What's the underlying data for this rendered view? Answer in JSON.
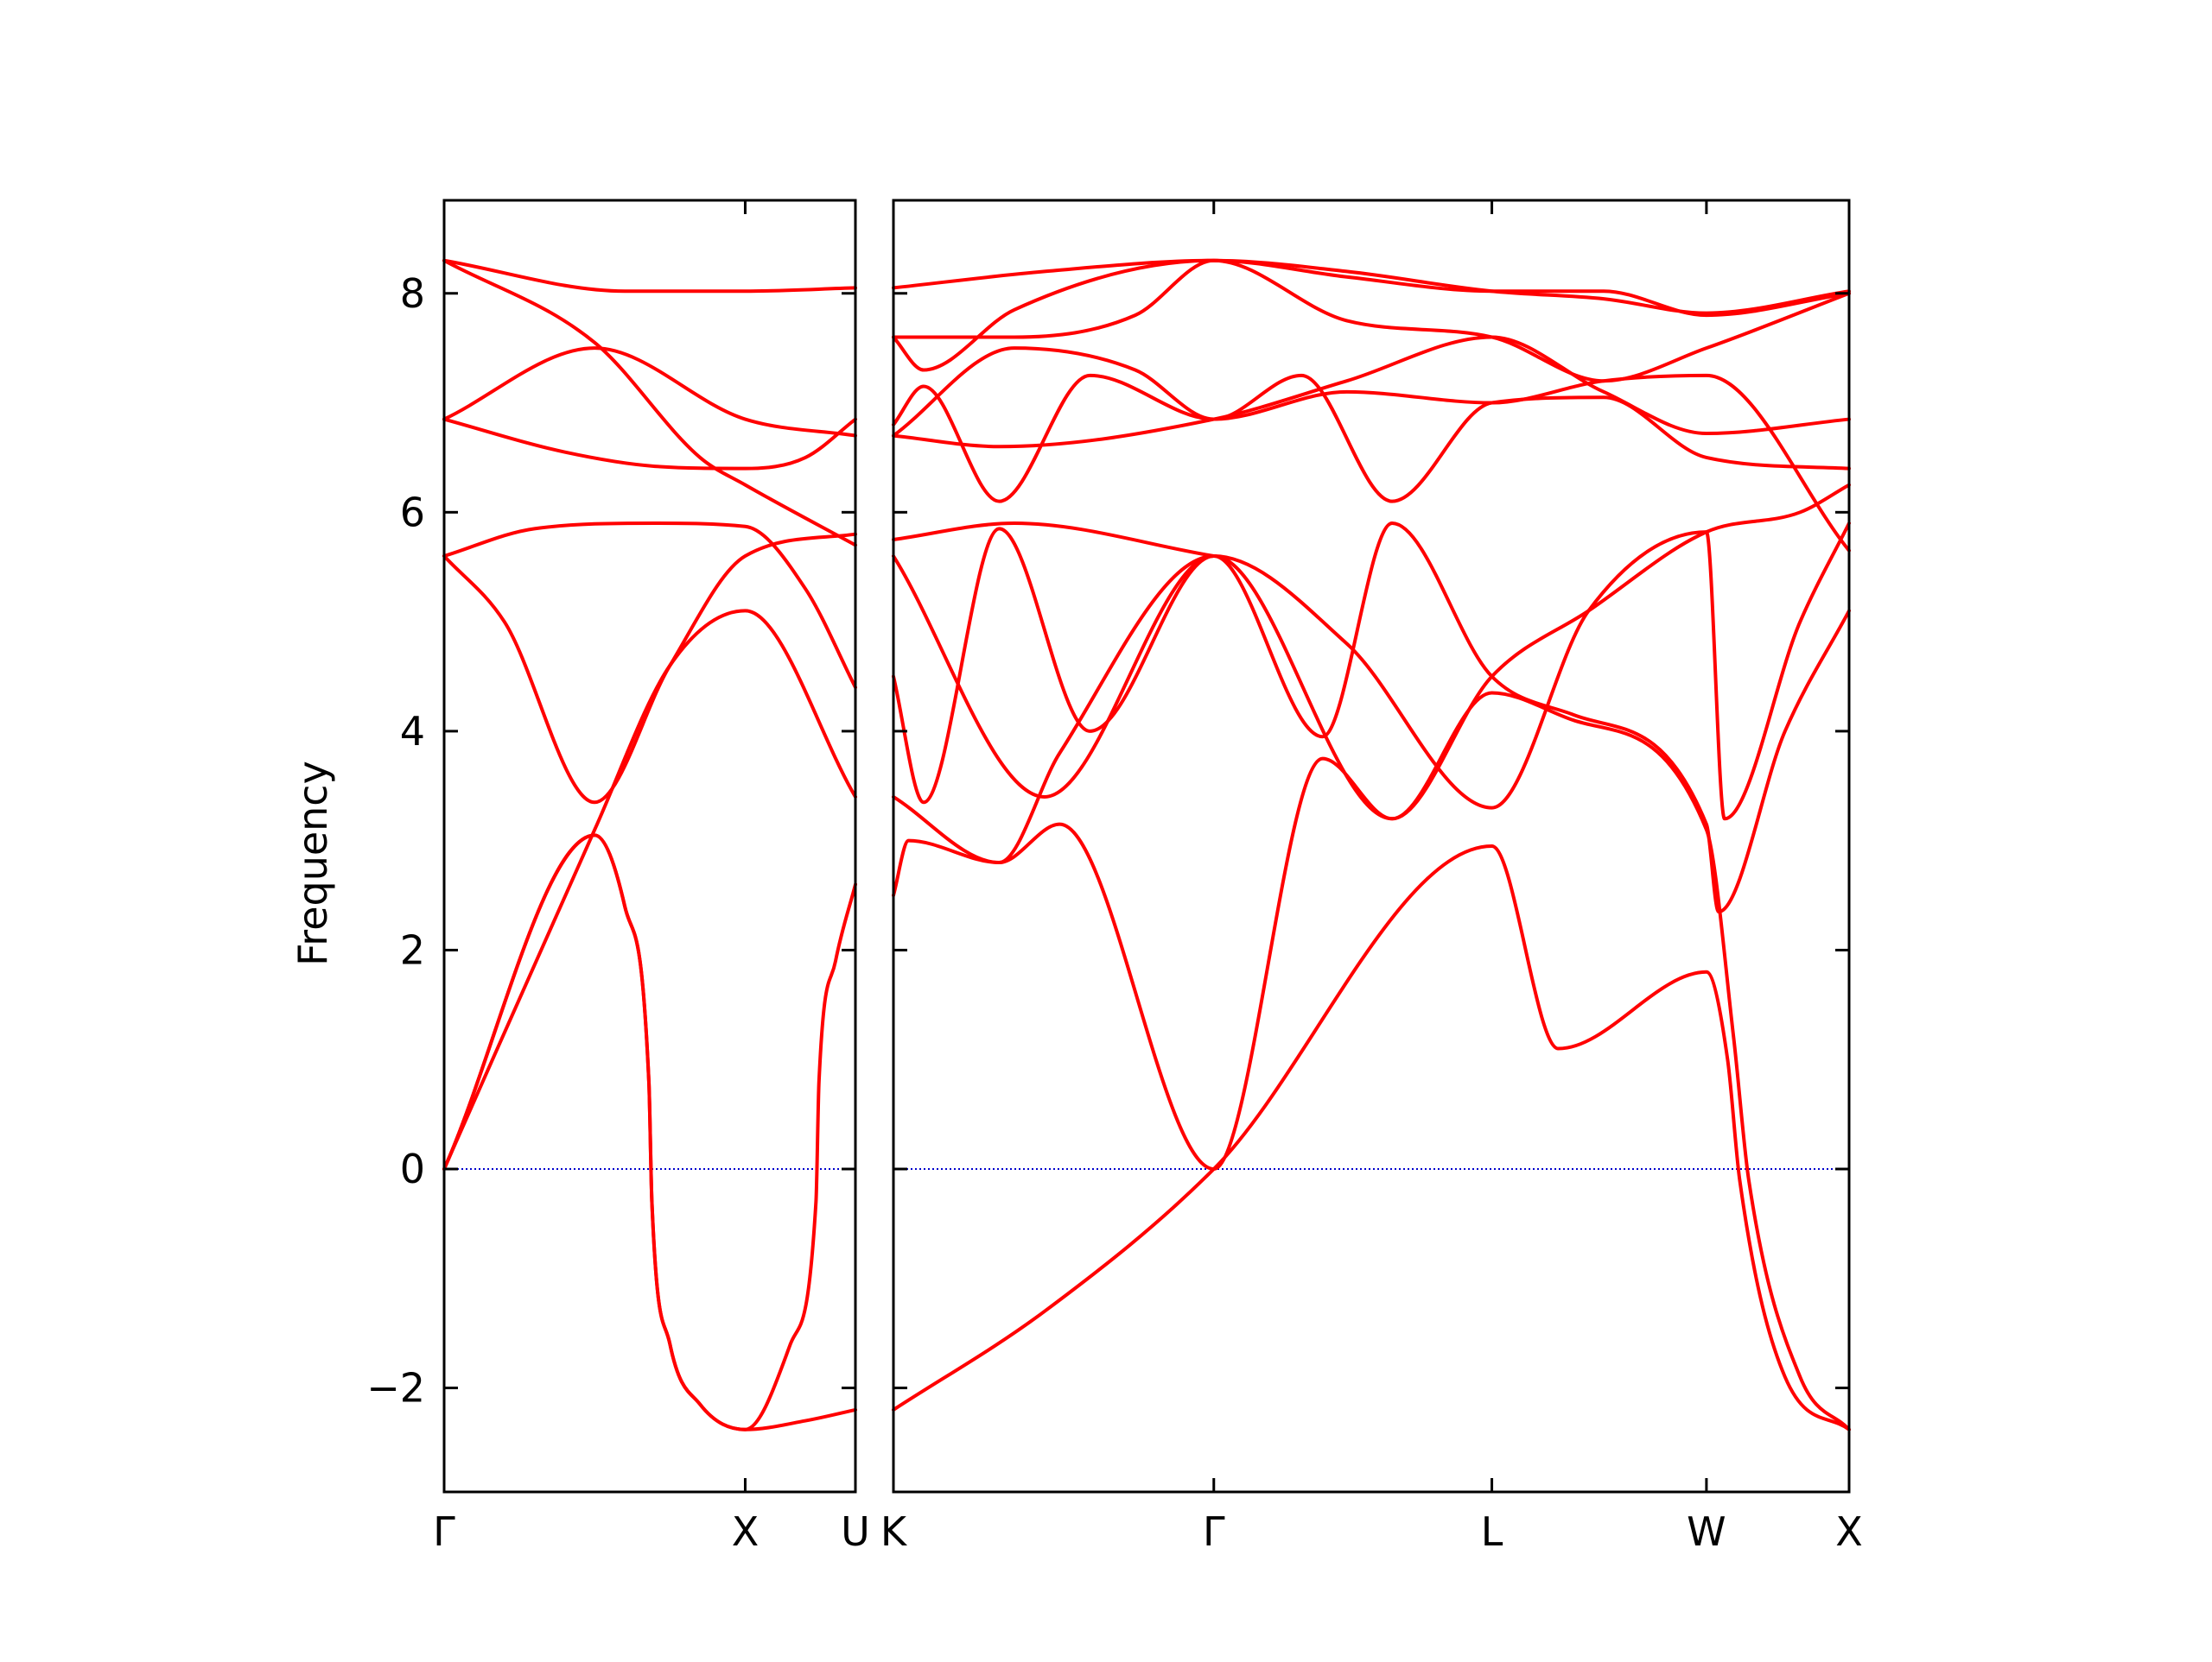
{
  "chart_data": {
    "type": "line",
    "ylabel": "Frequency",
    "ylim": [
      -2.95,
      8.85
    ],
    "yticks": [
      {
        "value": -2,
        "label": "−2"
      },
      {
        "value": 0,
        "label": "0"
      },
      {
        "value": 2,
        "label": "2"
      },
      {
        "value": 4,
        "label": "4"
      },
      {
        "value": 6,
        "label": "6"
      },
      {
        "value": 8,
        "label": "8"
      }
    ],
    "grid": false,
    "line_color": "#ff0000",
    "zero_line_color": "#0000cc",
    "panels": [
      {
        "name": "segment-1",
        "xlim": [
          0,
          1.366
        ],
        "labels": [
          {
            "x": 0,
            "label": "Γ"
          },
          {
            "x": 1.0,
            "label": "X"
          },
          {
            "x": 1.366,
            "label": "U"
          }
        ],
        "bands": [
          [
            [
              0,
              0
            ],
            [
              0.5,
              3.05
            ],
            [
              0.6,
              2.4
            ],
            [
              0.68,
              0.8
            ],
            [
              0.69,
              -0.3
            ],
            [
              0.75,
              -1.6
            ],
            [
              0.85,
              -2.15
            ],
            [
              1.0,
              -2.38
            ],
            [
              1.2,
              -2.3
            ],
            [
              1.366,
              -2.2
            ]
          ],
          [
            [
              0,
              0
            ],
            [
              0.5,
              3.05
            ],
            [
              0.6,
              2.4
            ],
            [
              0.68,
              0.8
            ],
            [
              0.69,
              -0.3
            ],
            [
              0.75,
              -1.6
            ],
            [
              0.85,
              -2.15
            ],
            [
              1.0,
              -2.38
            ],
            [
              1.15,
              -1.6
            ],
            [
              1.235,
              -0.3
            ],
            [
              1.245,
              0.8
            ],
            [
              1.3,
              1.9
            ],
            [
              1.366,
              2.6
            ]
          ],
          [
            [
              0,
              0
            ],
            [
              0.5,
              3.1
            ],
            [
              0.75,
              4.6
            ],
            [
              1.0,
              5.1
            ],
            [
              1.366,
              3.4
            ]
          ],
          [
            [
              0,
              5.6
            ],
            [
              0.2,
              5.0
            ],
            [
              0.5,
              3.35
            ],
            [
              0.75,
              4.6
            ],
            [
              1.0,
              5.6
            ],
            [
              1.366,
              5.8
            ]
          ],
          [
            [
              0,
              5.6
            ],
            [
              0.3,
              5.85
            ],
            [
              0.7,
              5.9
            ],
            [
              1.0,
              5.87
            ],
            [
              1.2,
              5.3
            ],
            [
              1.366,
              4.4
            ]
          ],
          [
            [
              0,
              6.85
            ],
            [
              0.4,
              6.55
            ],
            [
              0.7,
              6.42
            ],
            [
              1.0,
              6.4
            ],
            [
              1.2,
              6.5
            ],
            [
              1.366,
              6.85
            ]
          ],
          [
            [
              0,
              6.85
            ],
            [
              0.5,
              7.5
            ],
            [
              1.0,
              6.85
            ],
            [
              1.366,
              6.7
            ]
          ],
          [
            [
              0,
              8.3
            ],
            [
              0.5,
              7.55
            ],
            [
              0.85,
              6.5
            ],
            [
              1.0,
              6.25
            ],
            [
              1.366,
              5.7
            ]
          ],
          [
            [
              0,
              8.3
            ],
            [
              0.6,
              8.02
            ],
            [
              1.0,
              8.02
            ],
            [
              1.366,
              8.05
            ]
          ]
        ]
      },
      {
        "name": "segment-2",
        "xlim": [
          0,
          3.162
        ],
        "labels": [
          {
            "x": 0,
            "label": "K"
          },
          {
            "x": 1.06,
            "label": "Γ"
          },
          {
            "x": 1.98,
            "label": "L"
          },
          {
            "x": 2.69,
            "label": "W"
          },
          {
            "x": 3.162,
            "label": "X"
          }
        ],
        "bands": [
          [
            [
              0,
              -2.2
            ],
            [
              0.5,
              -1.3
            ],
            [
              1.06,
              0
            ],
            [
              1.98,
              2.95
            ],
            [
              2.2,
              1.1
            ],
            [
              2.69,
              1.8
            ],
            [
              2.76,
              1.0
            ],
            [
              2.8,
              -0.1
            ],
            [
              2.95,
              -1.9
            ],
            [
              3.162,
              -2.38
            ]
          ],
          [
            [
              0,
              2.5
            ],
            [
              0.05,
              3.0
            ],
            [
              0.35,
              2.8
            ],
            [
              0.55,
              3.15
            ],
            [
              1.06,
              0
            ],
            [
              1.42,
              3.75
            ],
            [
              1.65,
              3.2
            ],
            [
              1.98,
              4.35
            ],
            [
              2.25,
              4.1
            ],
            [
              2.69,
              3.1
            ],
            [
              2.78,
              1.2
            ],
            [
              2.83,
              -0.1
            ],
            [
              3.0,
              -1.9
            ],
            [
              3.162,
              -2.38
            ]
          ],
          [
            [
              0,
              3.4
            ],
            [
              0.35,
              2.8
            ],
            [
              0.55,
              3.8
            ],
            [
              1.06,
              5.6
            ],
            [
              1.42,
              3.95
            ],
            [
              1.65,
              5.9
            ],
            [
              1.98,
              4.5
            ],
            [
              2.25,
              4.15
            ],
            [
              2.69,
              3.15
            ],
            [
              2.73,
              2.35
            ],
            [
              2.95,
              4.0
            ],
            [
              3.162,
              5.1
            ]
          ],
          [
            [
              0,
              4.5
            ],
            [
              0.1,
              3.35
            ],
            [
              0.35,
              5.85
            ],
            [
              0.65,
              4.0
            ],
            [
              1.06,
              5.6
            ],
            [
              1.5,
              4.8
            ],
            [
              1.98,
              3.3
            ],
            [
              2.3,
              5.1
            ],
            [
              2.69,
              5.82
            ],
            [
              2.75,
              3.2
            ],
            [
              3.0,
              5.0
            ],
            [
              3.162,
              5.9
            ]
          ],
          [
            [
              0,
              5.6
            ],
            [
              0.5,
              3.4
            ],
            [
              1.06,
              5.6
            ],
            [
              1.65,
              3.2
            ],
            [
              1.98,
              4.5
            ],
            [
              2.3,
              5.1
            ],
            [
              2.69,
              5.82
            ],
            [
              3.0,
              6.0
            ],
            [
              3.162,
              6.25
            ]
          ],
          [
            [
              0,
              5.75
            ],
            [
              0.4,
              5.9
            ],
            [
              1.06,
              5.6
            ]
          ],
          [
            [
              0,
              6.7
            ],
            [
              0.35,
              6.6
            ],
            [
              1.06,
              6.85
            ],
            [
              1.5,
              7.2
            ],
            [
              1.98,
              7.6
            ],
            [
              2.35,
              7.1
            ],
            [
              2.69,
              6.72
            ],
            [
              3.162,
              6.85
            ]
          ],
          [
            [
              0,
              6.8
            ],
            [
              0.1,
              7.15
            ],
            [
              0.35,
              6.1
            ],
            [
              0.65,
              7.25
            ],
            [
              1.06,
              6.85
            ],
            [
              1.35,
              7.25
            ],
            [
              1.65,
              6.1
            ],
            [
              1.98,
              7.0
            ],
            [
              2.35,
              7.05
            ],
            [
              2.69,
              6.5
            ],
            [
              3.162,
              6.4
            ]
          ],
          [
            [
              0,
              6.7
            ],
            [
              0.4,
              7.5
            ],
            [
              0.8,
              7.3
            ],
            [
              1.06,
              6.85
            ],
            [
              1.5,
              7.1
            ],
            [
              1.98,
              7.0
            ],
            [
              2.35,
              7.2
            ],
            [
              2.69,
              7.25
            ],
            [
              3.162,
              5.65
            ]
          ],
          [
            [
              0,
              7.6
            ],
            [
              0.4,
              7.6
            ],
            [
              0.8,
              7.8
            ],
            [
              1.06,
              8.3
            ],
            [
              1.5,
              7.75
            ],
            [
              1.98,
              7.6
            ],
            [
              2.35,
              7.2
            ],
            [
              2.69,
              7.5
            ],
            [
              3.162,
              8.0
            ]
          ],
          [
            [
              0,
              7.6
            ],
            [
              0.1,
              7.3
            ],
            [
              0.4,
              7.85
            ],
            [
              1.06,
              8.3
            ],
            [
              1.5,
              8.15
            ],
            [
              1.98,
              8.02
            ],
            [
              2.35,
              8.02
            ],
            [
              2.69,
              7.8
            ],
            [
              3.162,
              8.0
            ]
          ],
          [
            [
              0,
              8.05
            ],
            [
              0.5,
              8.2
            ],
            [
              1.06,
              8.3
            ],
            [
              1.5,
              8.2
            ],
            [
              1.98,
              8.02
            ],
            [
              2.35,
              7.95
            ],
            [
              2.69,
              7.82
            ],
            [
              3.162,
              8.02
            ]
          ]
        ]
      }
    ]
  }
}
